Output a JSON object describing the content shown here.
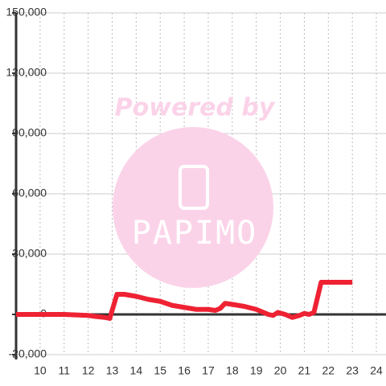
{
  "chart_data": {
    "type": "line",
    "watermark": {
      "top": "Powered by",
      "logo": "PAPIMO"
    },
    "x": [
      9,
      11,
      12,
      12.3,
      12.7,
      12.9,
      13.2,
      13.5,
      14,
      14.5,
      15,
      15.5,
      16,
      16.5,
      17,
      17.3,
      17.5,
      17.7,
      18,
      18.5,
      19,
      19.5,
      19.7,
      19.9,
      20.2,
      20.5,
      20.8,
      21,
      21.2,
      21.4,
      21.7,
      23
    ],
    "series": [
      {
        "color": "#ee2233",
        "values": [
          0,
          0,
          -500,
          -1000,
          -1500,
          -2000,
          10000,
          10000,
          9000,
          7500,
          6500,
          4500,
          3500,
          2500,
          2500,
          2000,
          3000,
          5500,
          5000,
          4000,
          2500,
          0,
          -500,
          1000,
          0,
          -1500,
          -500,
          500,
          0,
          1000,
          16000,
          16000
        ]
      }
    ],
    "xlim": [
      9,
      24.4
    ],
    "xticks": [
      10,
      11,
      12,
      13,
      14,
      15,
      16,
      17,
      18,
      19,
      20,
      21,
      22,
      23,
      24
    ],
    "ylim": [
      -20000,
      150000
    ],
    "yticks": [
      {
        "value": -20000,
        "label": "-20,000"
      },
      0,
      {
        "value": 30000,
        "label": "30,000"
      },
      {
        "value": 60000,
        "label": "60,000"
      },
      {
        "value": 90000,
        "label": "90,000"
      },
      {
        "value": 120000,
        "label": "120,000"
      },
      {
        "value": 150000,
        "label": "150,000"
      }
    ],
    "grid": true
  }
}
